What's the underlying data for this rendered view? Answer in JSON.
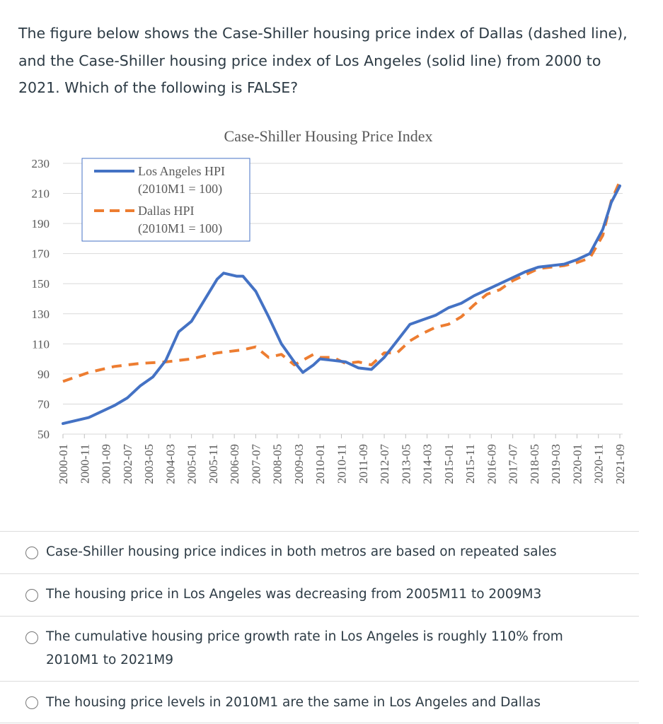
{
  "question": "The figure below shows the Case-Shiller housing price index of Dallas (dashed line), and the Case-Shiller housing price index of Los Angeles (solid line) from 2000 to 2021. Which of the following is FALSE?",
  "chart_data": {
    "type": "line",
    "title": "Case-Shiller Housing Price Index",
    "ylim": [
      50,
      230
    ],
    "yticks": [
      50,
      70,
      90,
      110,
      130,
      150,
      170,
      190,
      210,
      230
    ],
    "xticks": [
      "2000-01",
      "2000-11",
      "2001-09",
      "2002-07",
      "2003-05",
      "2004-03",
      "2005-01",
      "2005-11",
      "2006-09",
      "2007-07",
      "2008-05",
      "2009-03",
      "2010-01",
      "2010-11",
      "2011-09",
      "2012-07",
      "2013-05",
      "2014-03",
      "2015-01",
      "2015-11",
      "2016-09",
      "2017-07",
      "2018-05",
      "2019-03",
      "2020-01",
      "2020-11",
      "2021-09"
    ],
    "grid": true,
    "legend_position": "top-left",
    "series": [
      {
        "name": "Los Angeles HPI",
        "name_line2": "(2010M1 = 100)",
        "style": "solid",
        "color": "#4472c4",
        "x": [
          "2000-01",
          "2001-01",
          "2002-01",
          "2002-07",
          "2003-01",
          "2003-07",
          "2004-01",
          "2004-07",
          "2005-01",
          "2005-07",
          "2006-01",
          "2006-04",
          "2006-10",
          "2007-01",
          "2007-07",
          "2008-01",
          "2008-07",
          "2009-01",
          "2009-05",
          "2009-10",
          "2010-01",
          "2010-07",
          "2011-01",
          "2011-07",
          "2012-01",
          "2012-07",
          "2013-01",
          "2013-07",
          "2014-01",
          "2014-07",
          "2015-01",
          "2015-07",
          "2016-01",
          "2016-07",
          "2017-01",
          "2017-07",
          "2018-01",
          "2018-07",
          "2019-01",
          "2019-07",
          "2020-01",
          "2020-07",
          "2021-01",
          "2021-05",
          "2021-09"
        ],
        "values": [
          57,
          61,
          69,
          74,
          82,
          88,
          99,
          118,
          125,
          139,
          153,
          157,
          155,
          155,
          145,
          128,
          110,
          98,
          91,
          96,
          100,
          99,
          98,
          94,
          93,
          101,
          112,
          123,
          126,
          129,
          134,
          137,
          142,
          146,
          150,
          154,
          158,
          161,
          162,
          163,
          166,
          170,
          186,
          204,
          215
        ]
      },
      {
        "name": "Dallas HPI",
        "name_line2": "(2010M1 = 100)",
        "style": "dashed",
        "color": "#ed7d31",
        "x": [
          "2000-01",
          "2001-01",
          "2002-01",
          "2003-01",
          "2004-01",
          "2005-01",
          "2006-01",
          "2007-01",
          "2007-07",
          "2008-01",
          "2008-07",
          "2009-01",
          "2009-10",
          "2010-01",
          "2010-07",
          "2011-01",
          "2011-07",
          "2012-01",
          "2012-07",
          "2013-01",
          "2013-07",
          "2014-01",
          "2014-07",
          "2015-01",
          "2015-07",
          "2016-01",
          "2016-07",
          "2017-01",
          "2017-07",
          "2018-01",
          "2018-07",
          "2019-01",
          "2019-07",
          "2020-01",
          "2020-07",
          "2021-01",
          "2021-05",
          "2021-09"
        ],
        "values": [
          85,
          91,
          95,
          97,
          98,
          100,
          104,
          106,
          108,
          101,
          103,
          96,
          103,
          101,
          101,
          97,
          98,
          96,
          104,
          104,
          112,
          117,
          121,
          123,
          128,
          136,
          143,
          146,
          152,
          156,
          160,
          161,
          162,
          164,
          167,
          182,
          205,
          218
        ]
      }
    ]
  },
  "options": [
    {
      "label": "Case-Shiller housing price indices in both metros are based on repeated sales"
    },
    {
      "label": "The housing price in Los Angeles was decreasing from 2005M11 to 2009M3"
    },
    {
      "label": "The cumulative housing price growth rate in Los Angeles is roughly 110% from 2010M1 to 2021M9"
    },
    {
      "label": "The housing price levels in 2010M1 are the same in Los Angeles and Dallas"
    }
  ]
}
